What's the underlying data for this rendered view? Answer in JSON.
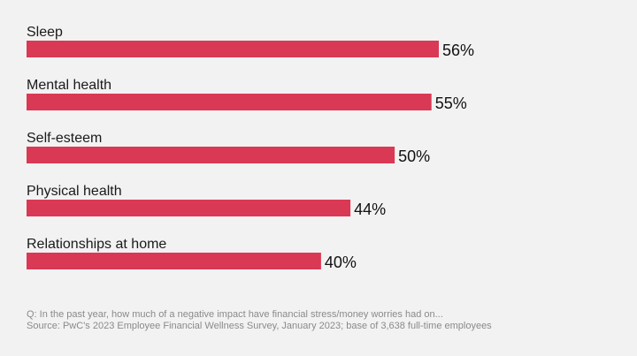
{
  "chart_data": {
    "type": "bar",
    "orientation": "horizontal",
    "categories": [
      "Sleep",
      "Mental health",
      "Self-esteem",
      "Physical health",
      "Relationships at home"
    ],
    "values": [
      56,
      55,
      50,
      44,
      40
    ],
    "value_labels": [
      "56%",
      "55%",
      "50%",
      "44%",
      "40%"
    ],
    "unit": "%",
    "bar_color": "#d93954",
    "grid": false,
    "legend": "none"
  },
  "footnotes": {
    "question": "Q: In the past year, how much of a negative impact have financial stress/money worries had on...",
    "source": "Source: PwC's 2023 Employee Financial Wellness Survey, January 2023; base of 3,638 full-time employees"
  }
}
